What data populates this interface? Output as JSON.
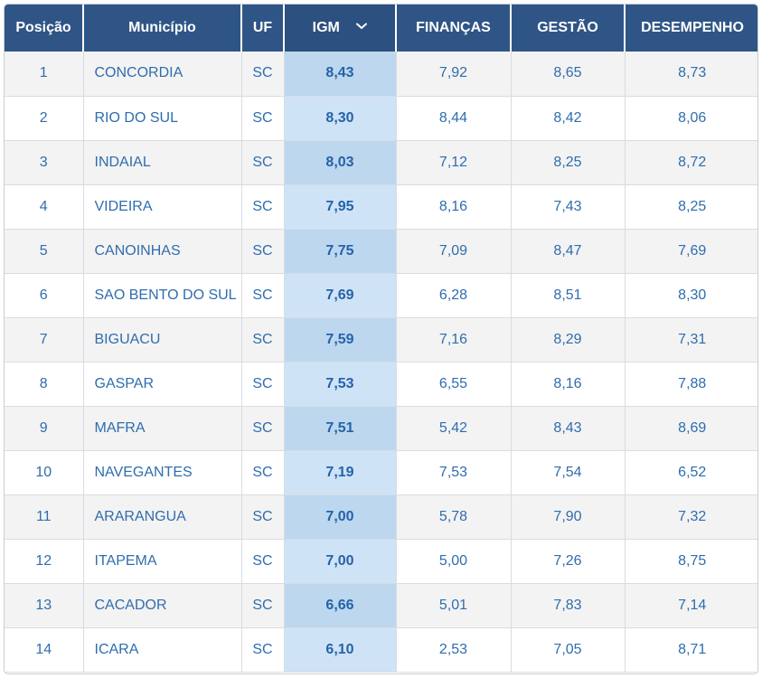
{
  "table": {
    "headers": [
      "Posição",
      "Município",
      "UF",
      "IGM",
      "FINANÇAS",
      "GESTÃO",
      "DESEMPENHO"
    ],
    "sorted_column": "IGM",
    "rows": [
      {
        "pos": "1",
        "municipio": "CONCORDIA",
        "uf": "SC",
        "igm": "8,43",
        "financas": "7,92",
        "gestao": "8,65",
        "desempenho": "8,73"
      },
      {
        "pos": "2",
        "municipio": "RIO DO SUL",
        "uf": "SC",
        "igm": "8,30",
        "financas": "8,44",
        "gestao": "8,42",
        "desempenho": "8,06"
      },
      {
        "pos": "3",
        "municipio": "INDAIAL",
        "uf": "SC",
        "igm": "8,03",
        "financas": "7,12",
        "gestao": "8,25",
        "desempenho": "8,72"
      },
      {
        "pos": "4",
        "municipio": "VIDEIRA",
        "uf": "SC",
        "igm": "7,95",
        "financas": "8,16",
        "gestao": "7,43",
        "desempenho": "8,25"
      },
      {
        "pos": "5",
        "municipio": "CANOINHAS",
        "uf": "SC",
        "igm": "7,75",
        "financas": "7,09",
        "gestao": "8,47",
        "desempenho": "7,69"
      },
      {
        "pos": "6",
        "municipio": "SAO BENTO DO SUL",
        "uf": "SC",
        "igm": "7,69",
        "financas": "6,28",
        "gestao": "8,51",
        "desempenho": "8,30"
      },
      {
        "pos": "7",
        "municipio": "BIGUACU",
        "uf": "SC",
        "igm": "7,59",
        "financas": "7,16",
        "gestao": "8,29",
        "desempenho": "7,31"
      },
      {
        "pos": "8",
        "municipio": "GASPAR",
        "uf": "SC",
        "igm": "7,53",
        "financas": "6,55",
        "gestao": "8,16",
        "desempenho": "7,88"
      },
      {
        "pos": "9",
        "municipio": "MAFRA",
        "uf": "SC",
        "igm": "7,51",
        "financas": "5,42",
        "gestao": "8,43",
        "desempenho": "8,69"
      },
      {
        "pos": "10",
        "municipio": "NAVEGANTES",
        "uf": "SC",
        "igm": "7,19",
        "financas": "7,53",
        "gestao": "7,54",
        "desempenho": "6,52"
      },
      {
        "pos": "11",
        "municipio": "ARARANGUA",
        "uf": "SC",
        "igm": "7,00",
        "financas": "5,78",
        "gestao": "7,90",
        "desempenho": "7,32"
      },
      {
        "pos": "12",
        "municipio": "ITAPEMA",
        "uf": "SC",
        "igm": "7,00",
        "financas": "5,00",
        "gestao": "7,26",
        "desempenho": "8,75"
      },
      {
        "pos": "13",
        "municipio": "CACADOR",
        "uf": "SC",
        "igm": "6,66",
        "financas": "5,01",
        "gestao": "7,83",
        "desempenho": "7,14"
      },
      {
        "pos": "14",
        "municipio": "ICARA",
        "uf": "SC",
        "igm": "6,10",
        "financas": "2,53",
        "gestao": "7,05",
        "desempenho": "8,71"
      }
    ]
  },
  "icons": {
    "sort": "chevron-down-icon"
  },
  "colors": {
    "header_bg": "#2f5587",
    "text": "#2f6dae",
    "igm_highlight": "#cfe3f6"
  }
}
